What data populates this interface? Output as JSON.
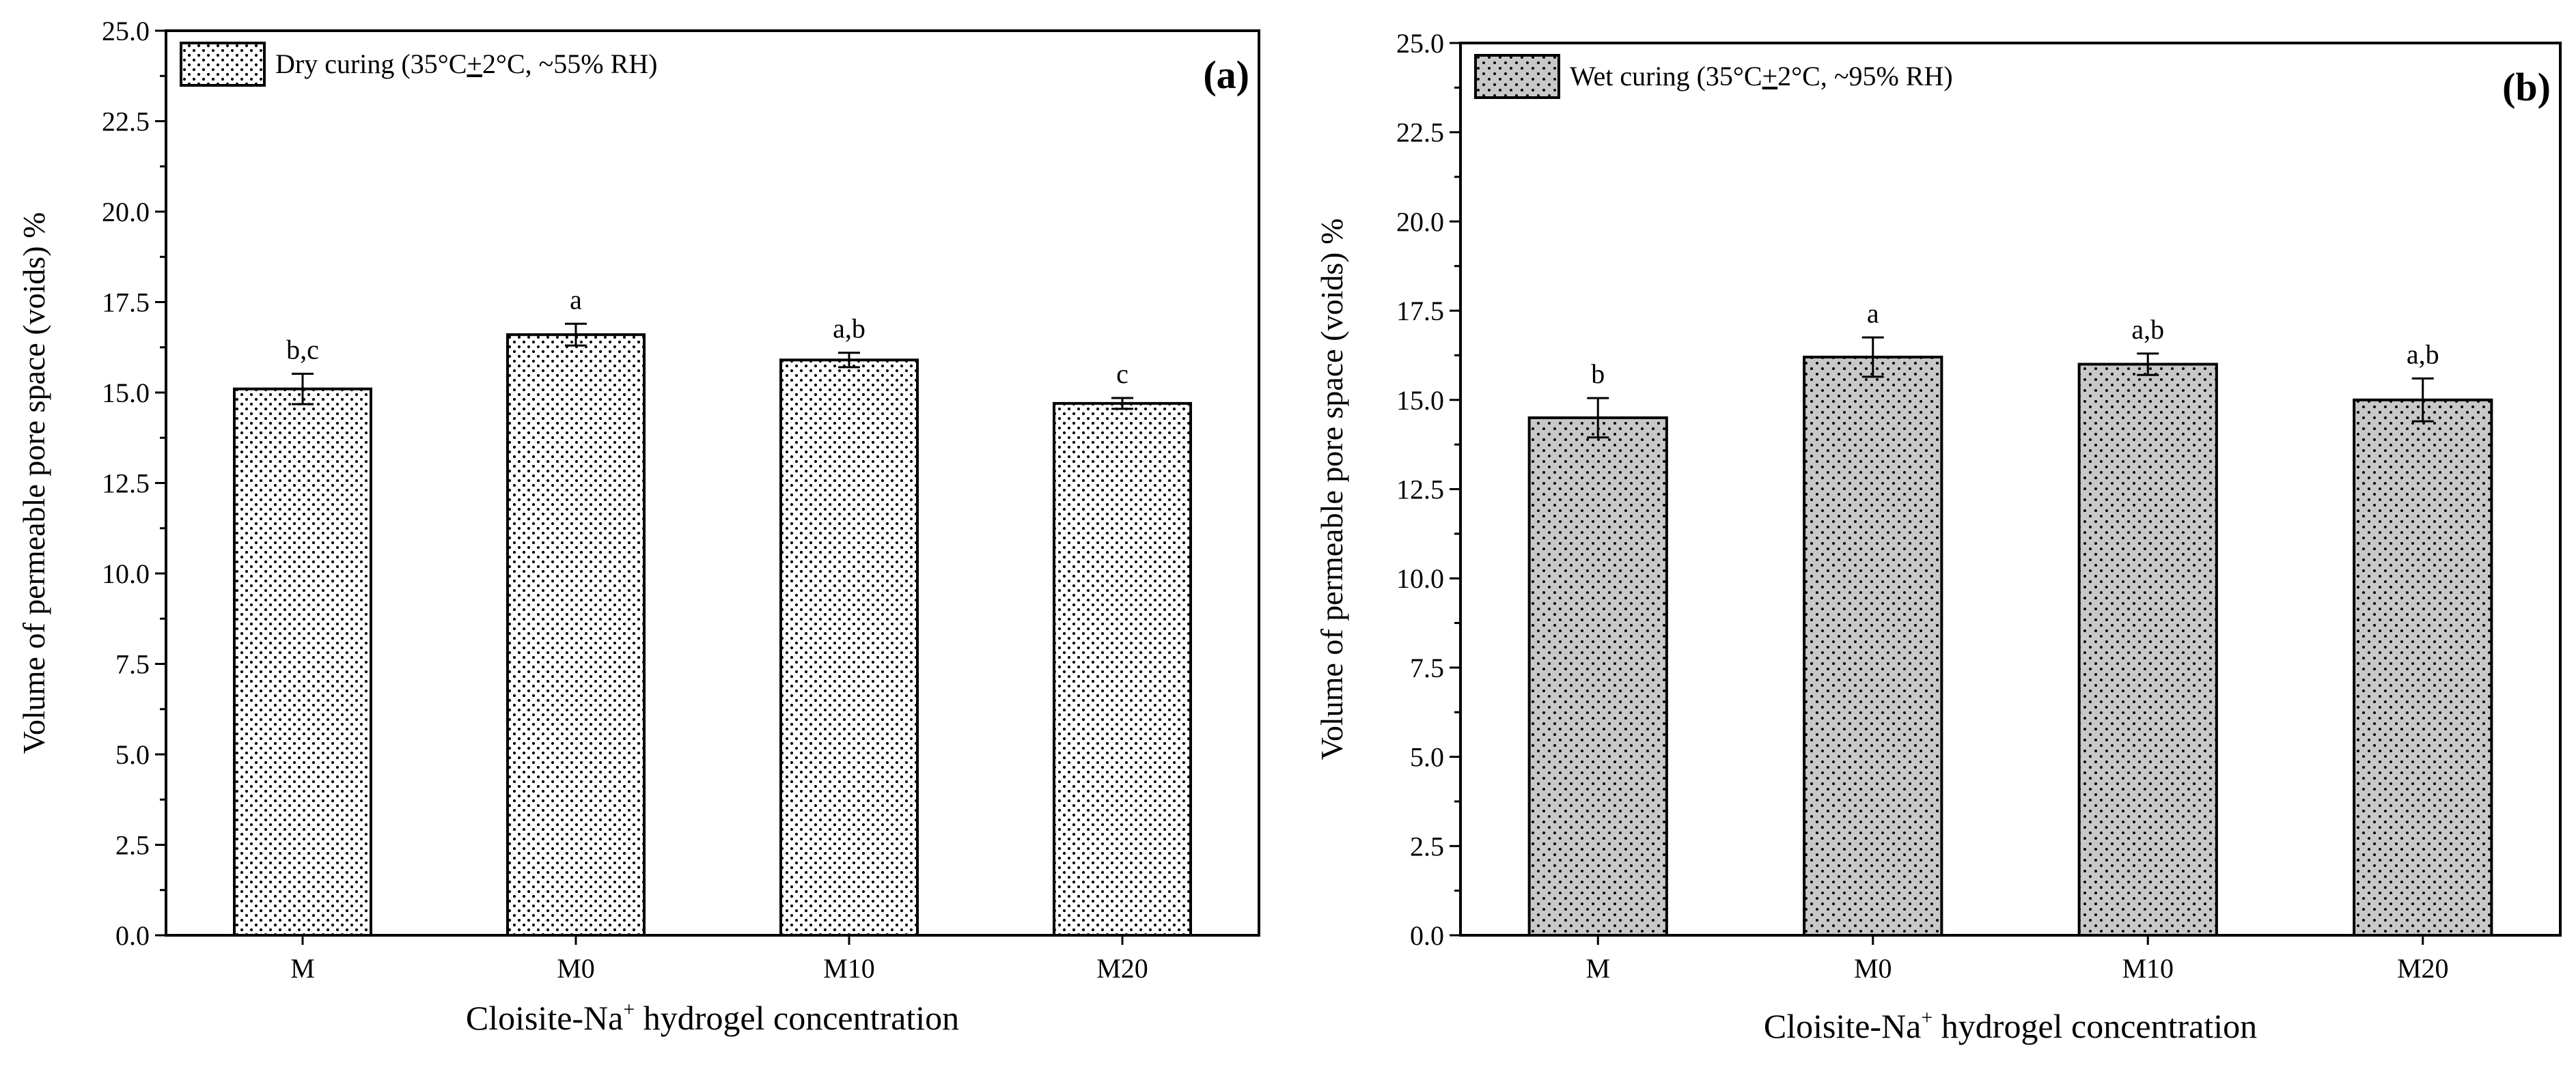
{
  "chart_data": [
    {
      "type": "bar",
      "panel_label": "(a)",
      "legend": "Dry curing (35°C±2°C, ~55% RH)",
      "legend_parts": [
        "Dry curing (35°C",
        "+",
        "2°C, ~55% RH)"
      ],
      "categories": [
        "M",
        "M0",
        "M10",
        "M20"
      ],
      "values": [
        15.1,
        16.6,
        15.9,
        14.7
      ],
      "errors": [
        0.42,
        0.3,
        0.2,
        0.15
      ],
      "letters": [
        "b,c",
        "a",
        "a,b",
        "c"
      ],
      "xlabel": "Cloisite-Na+ hydrogel concentration",
      "xlabel_parts": [
        "Cloisite-Na",
        "+",
        " hydrogel concentration"
      ],
      "ylabel": "Volume of permeable pore space (voids) %",
      "ylim": [
        0,
        25
      ],
      "yticks": [
        "0.0",
        "2.5",
        "5.0",
        "7.5",
        "10.0",
        "12.5",
        "15.0",
        "17.5",
        "20.0",
        "22.5",
        "25.0"
      ],
      "fill": "#ffffff",
      "pattern_dots": "#000000",
      "legend_position": "top-left",
      "grid": false
    },
    {
      "type": "bar",
      "panel_label": "(b)",
      "legend": "Wet curing (35°C±2°C, ~95% RH)",
      "legend_parts": [
        "Wet curing (35°C",
        "+",
        "2°C, ~95% RH)"
      ],
      "categories": [
        "M",
        "M0",
        "M10",
        "M20"
      ],
      "values": [
        14.5,
        16.2,
        16.0,
        15.0
      ],
      "errors": [
        0.55,
        0.55,
        0.3,
        0.6
      ],
      "letters": [
        "b",
        "a",
        "a,b",
        "a,b"
      ],
      "xlabel": "Cloisite-Na+ hydrogel concentration",
      "xlabel_parts": [
        "Cloisite-Na",
        "+",
        " hydrogel concentration"
      ],
      "ylabel": "Volume of permeable pore space (voids) %",
      "ylim": [
        0,
        25
      ],
      "yticks": [
        "0.0",
        "2.5",
        "5.0",
        "7.5",
        "10.0",
        "12.5",
        "15.0",
        "17.5",
        "20.0",
        "22.5",
        "25.0"
      ],
      "fill": "#c8c8c8",
      "pattern_dots": "#000000",
      "legend_position": "top-left",
      "grid": false
    }
  ]
}
